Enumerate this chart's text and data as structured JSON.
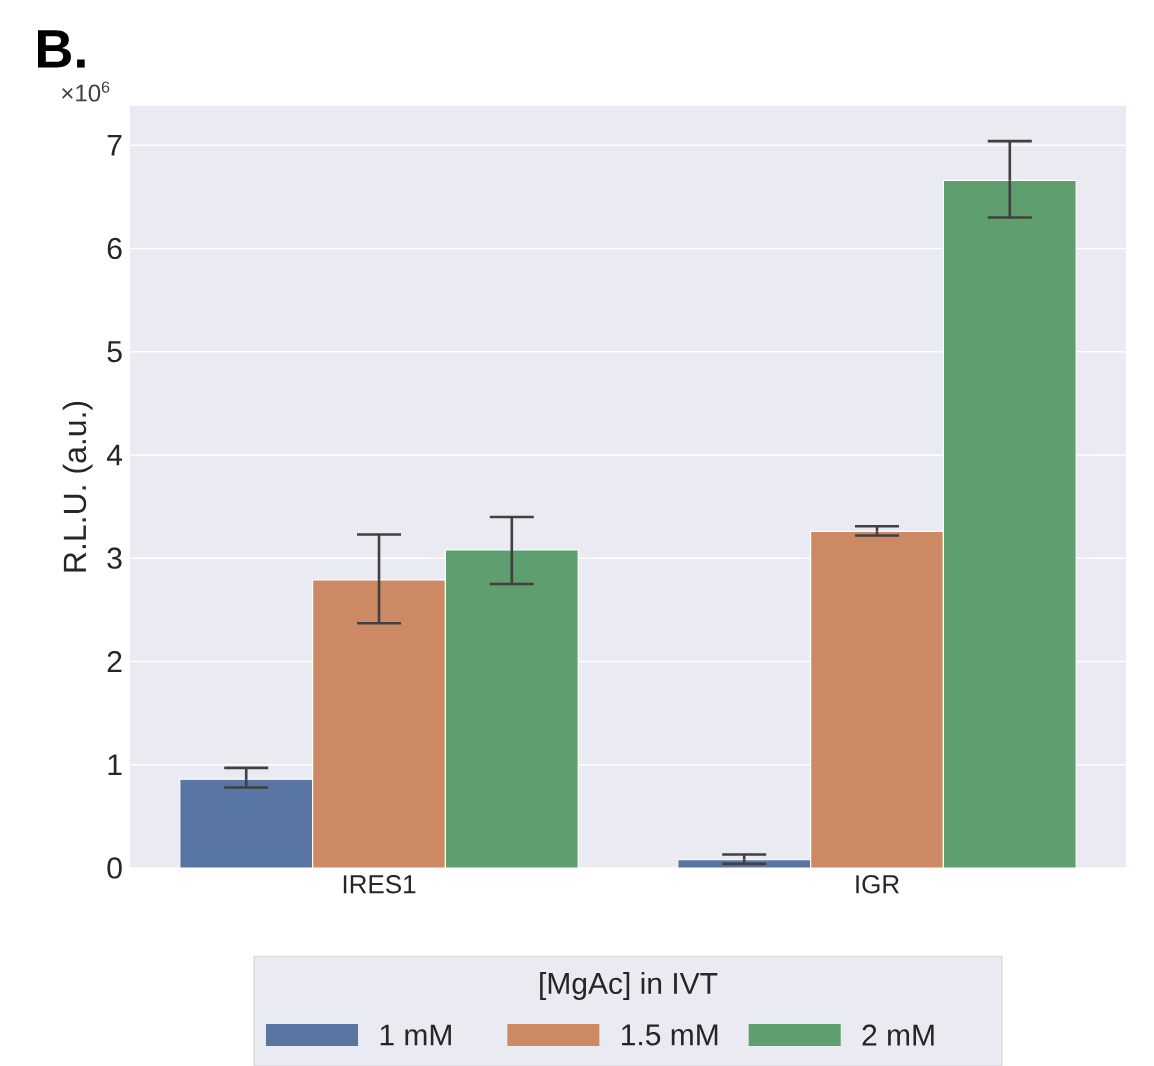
{
  "chart_data": {
    "type": "bar",
    "title": "B.",
    "ylabel": "R.L.U. (a.u.)",
    "annotations": [
      "×10$^{6}$"
    ],
    "categories": [
      "IRES1",
      "IGR"
    ],
    "ylim": [
      0,
      7.38
    ],
    "yticks": [
      0,
      1,
      2,
      3,
      4,
      5,
      6,
      7
    ],
    "grid": "y",
    "legend": "bottom",
    "legend_title": "[MgAc] in IVT",
    "series": [
      {
        "name": "1 mM",
        "color": "#5975a4",
        "values": [
          0.86,
          0.08
        ],
        "errors": [
          [
            0.78,
            0.97
          ],
          [
            0.04,
            0.13
          ]
        ]
      },
      {
        "name": "1.5 mM",
        "color": "#cc8963",
        "values": [
          2.79,
          3.26
        ],
        "errors": [
          [
            2.37,
            3.23
          ],
          [
            3.22,
            3.31
          ]
        ]
      },
      {
        "name": "2 mM",
        "color": "#5f9e6e",
        "values": [
          3.08,
          6.66
        ],
        "errors": [
          [
            2.75,
            3.4
          ],
          [
            6.3,
            7.04
          ]
        ]
      }
    ]
  }
}
